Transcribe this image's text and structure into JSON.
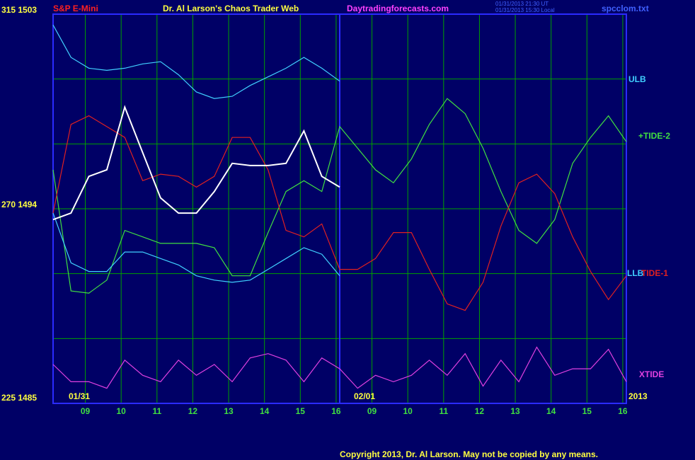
{
  "chart_data": {
    "type": "line",
    "title": "S&P E-Mini",
    "subtitle": "Dr. Al Larson's Chaos Trader Web",
    "site": "Daytradingforecasts.com",
    "timestamps": [
      "01/31/2013 21:30 UT",
      "01/31/2013 15:30 Local"
    ],
    "file_name": "spcclom.txt",
    "copyright": "Copyright 2013, Dr. Al Larson. May not be copied by any means.",
    "date_labels": [
      "01/31",
      "02/01",
      "2013"
    ],
    "xlim": [
      0,
      16
    ],
    "xticks": [
      {
        "value": 0.9,
        "label": "09"
      },
      {
        "value": 1.9,
        "label": "10"
      },
      {
        "value": 2.9,
        "label": "11"
      },
      {
        "value": 3.9,
        "label": "12"
      },
      {
        "value": 4.9,
        "label": "13"
      },
      {
        "value": 5.9,
        "label": "14"
      },
      {
        "value": 6.9,
        "label": "15"
      },
      {
        "value": 7.9,
        "label": "16"
      },
      {
        "value": 8.9,
        "label": "09"
      },
      {
        "value": 9.9,
        "label": "10"
      },
      {
        "value": 10.9,
        "label": "11"
      },
      {
        "value": 11.9,
        "label": "12"
      },
      {
        "value": 12.9,
        "label": "13"
      },
      {
        "value": 13.9,
        "label": "14"
      },
      {
        "value": 14.9,
        "label": "15"
      },
      {
        "value": 15.9,
        "label": "16"
      }
    ],
    "ylim": [
      1485,
      1503
    ],
    "yticks": [
      {
        "value": 1485,
        "label": "225  1485"
      },
      {
        "value": 1488,
        "label": null
      },
      {
        "value": 1491,
        "label": null
      },
      {
        "value": 1494,
        "label": "270  1494"
      },
      {
        "value": 1497,
        "label": null
      },
      {
        "value": 1500,
        "label": null
      },
      {
        "value": 1503,
        "label": "315  1503"
      }
    ],
    "grid": true,
    "x": [
      0,
      0.5,
      1,
      1.5,
      2,
      2.5,
      3,
      3.5,
      4,
      4.5,
      5,
      5.5,
      6,
      6.5,
      7,
      7.5,
      8,
      8.5,
      9,
      9.5,
      10,
      10.5,
      11,
      11.5,
      12,
      12.5,
      13,
      13.5,
      14,
      14.5,
      15,
      15.5,
      16
    ],
    "series": [
      {
        "name": "ULB",
        "color": "#40d0ff",
        "values": [
          1502.5,
          1501.0,
          1500.5,
          1500.4,
          1500.5,
          1500.7,
          1500.8,
          1500.2,
          1499.4,
          1499.1,
          1499.2,
          1499.7,
          1500.1,
          1500.5,
          1501.0,
          1500.5,
          1499.9,
          null,
          null,
          null,
          null,
          null,
          null,
          null,
          null,
          null,
          null,
          null,
          null,
          null,
          null,
          null,
          null
        ]
      },
      {
        "name": "+TIDE-2",
        "color": "#40e040",
        "values": [
          1495.8,
          1490.2,
          1490.1,
          1490.7,
          1493.0,
          1492.7,
          1492.4,
          1492.4,
          1492.4,
          1492.2,
          1490.9,
          1490.9,
          1492.9,
          1494.8,
          1495.3,
          1494.8,
          1497.8,
          1496.8,
          1495.8,
          1495.2,
          1496.3,
          1497.9,
          1499.1,
          1498.4,
          1496.8,
          1494.8,
          1493.0,
          1492.4,
          1493.5,
          1496.1,
          1497.3,
          1498.3,
          1497.1
        ]
      },
      {
        "name": "LLB",
        "color": "#40d0ff",
        "values": [
          1493.8,
          1491.5,
          1491.1,
          1491.1,
          1492.0,
          1492.0,
          1491.7,
          1491.4,
          1490.9,
          1490.7,
          1490.6,
          1490.7,
          1491.2,
          1491.7,
          1492.2,
          1491.9,
          1490.9,
          null,
          null,
          null,
          null,
          null,
          null,
          null,
          null,
          null,
          null,
          null,
          null,
          null,
          null,
          null,
          null
        ]
      },
      {
        "name": "TIDE-1",
        "color": "#e02020",
        "values": [
          1493.8,
          1497.9,
          1498.3,
          1497.8,
          1497.3,
          1495.3,
          1495.6,
          1495.5,
          1495.0,
          1495.5,
          1497.3,
          1497.3,
          1495.8,
          1493.0,
          1492.7,
          1493.3,
          1491.2,
          1491.2,
          1491.7,
          1492.9,
          1492.9,
          1491.2,
          1489.6,
          1489.3,
          1490.6,
          1493.2,
          1495.2,
          1495.6,
          1494.7,
          1492.7,
          1491.1,
          1489.8,
          1490.9
        ]
      },
      {
        "name": "XTIDE",
        "color": "#e040e0",
        "values": [
          1486.8,
          1486.0,
          1486.0,
          1485.7,
          1487.0,
          1486.3,
          1486.0,
          1487.0,
          1486.3,
          1486.8,
          1486.0,
          1487.1,
          1487.3,
          1487.0,
          1486.0,
          1487.1,
          1486.6,
          1485.7,
          1486.3,
          1486.0,
          1486.3,
          1487.0,
          1486.3,
          1487.3,
          1485.8,
          1487.0,
          1486.0,
          1487.6,
          1486.3,
          1486.6,
          1486.6,
          1487.5,
          1486.0
        ]
      },
      {
        "color": "#ffffff",
        "values": [
          1493.5,
          1493.8,
          1495.5,
          1495.8,
          1498.7,
          1496.6,
          1494.5,
          1493.8,
          1493.8,
          1494.8,
          1496.1,
          1496.0,
          1496.0,
          1496.1,
          1497.6,
          1495.5,
          1495.0,
          null,
          null,
          null,
          null,
          null,
          null,
          null,
          null,
          null,
          null,
          null,
          null,
          null,
          null,
          null,
          null
        ]
      }
    ]
  }
}
